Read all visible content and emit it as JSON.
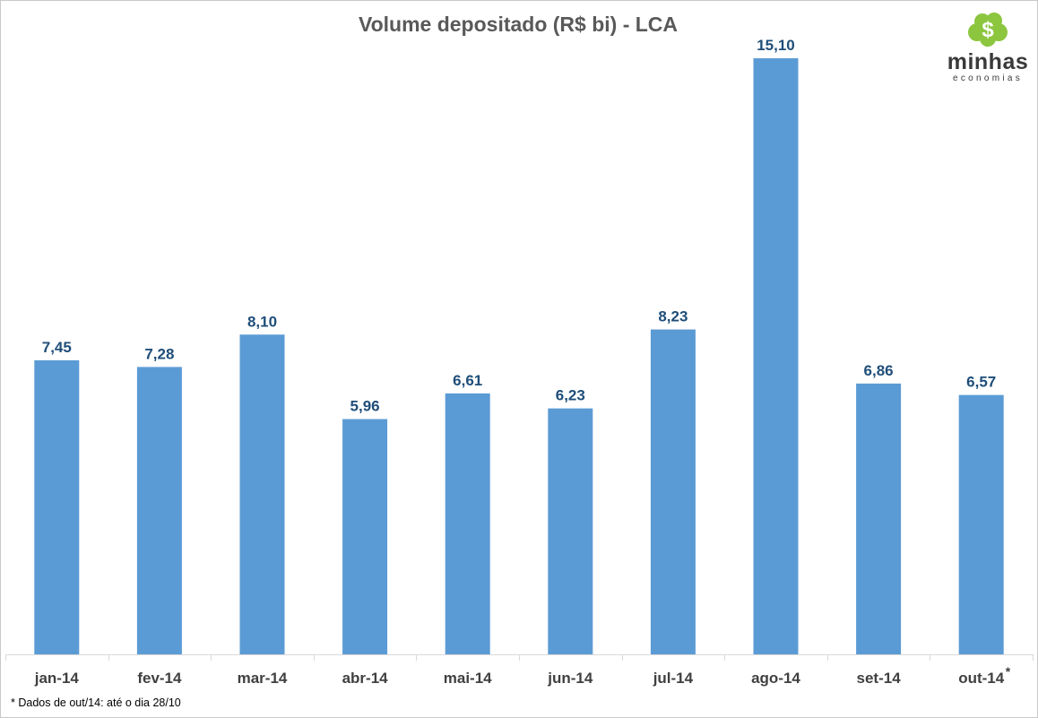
{
  "chart_data": {
    "type": "bar",
    "title": "Volume depositado (R$ bi) - LCA",
    "categories": [
      "jan-14",
      "fev-14",
      "mar-14",
      "abr-14",
      "mai-14",
      "jun-14",
      "jul-14",
      "ago-14",
      "set-14",
      "out-14"
    ],
    "values": [
      7.45,
      7.28,
      8.1,
      5.96,
      6.61,
      6.23,
      8.23,
      15.1,
      6.86,
      6.57
    ],
    "data_labels": [
      "7,45",
      "7,28",
      "8,10",
      "5,96",
      "6,61",
      "6,23",
      "8,23",
      "15,10",
      "6,86",
      "6,57"
    ],
    "category_markers": [
      "",
      "",
      "",
      "",
      "",
      "",
      "",
      "",
      "",
      "*"
    ],
    "ylim": [
      0,
      15.1
    ],
    "grid": false,
    "legend": "none",
    "colors": {
      "bar": "#5b9bd5",
      "data_label": "#1f4e79",
      "title": "#595959",
      "axis_label": "#404040"
    }
  },
  "footnote": "* Dados de out/14: até o dia 28/10",
  "logo": {
    "name": "minhas",
    "tagline": "economias",
    "symbol": "$",
    "icon": "dollar-cloud-icon",
    "color": "#8cc63f"
  }
}
